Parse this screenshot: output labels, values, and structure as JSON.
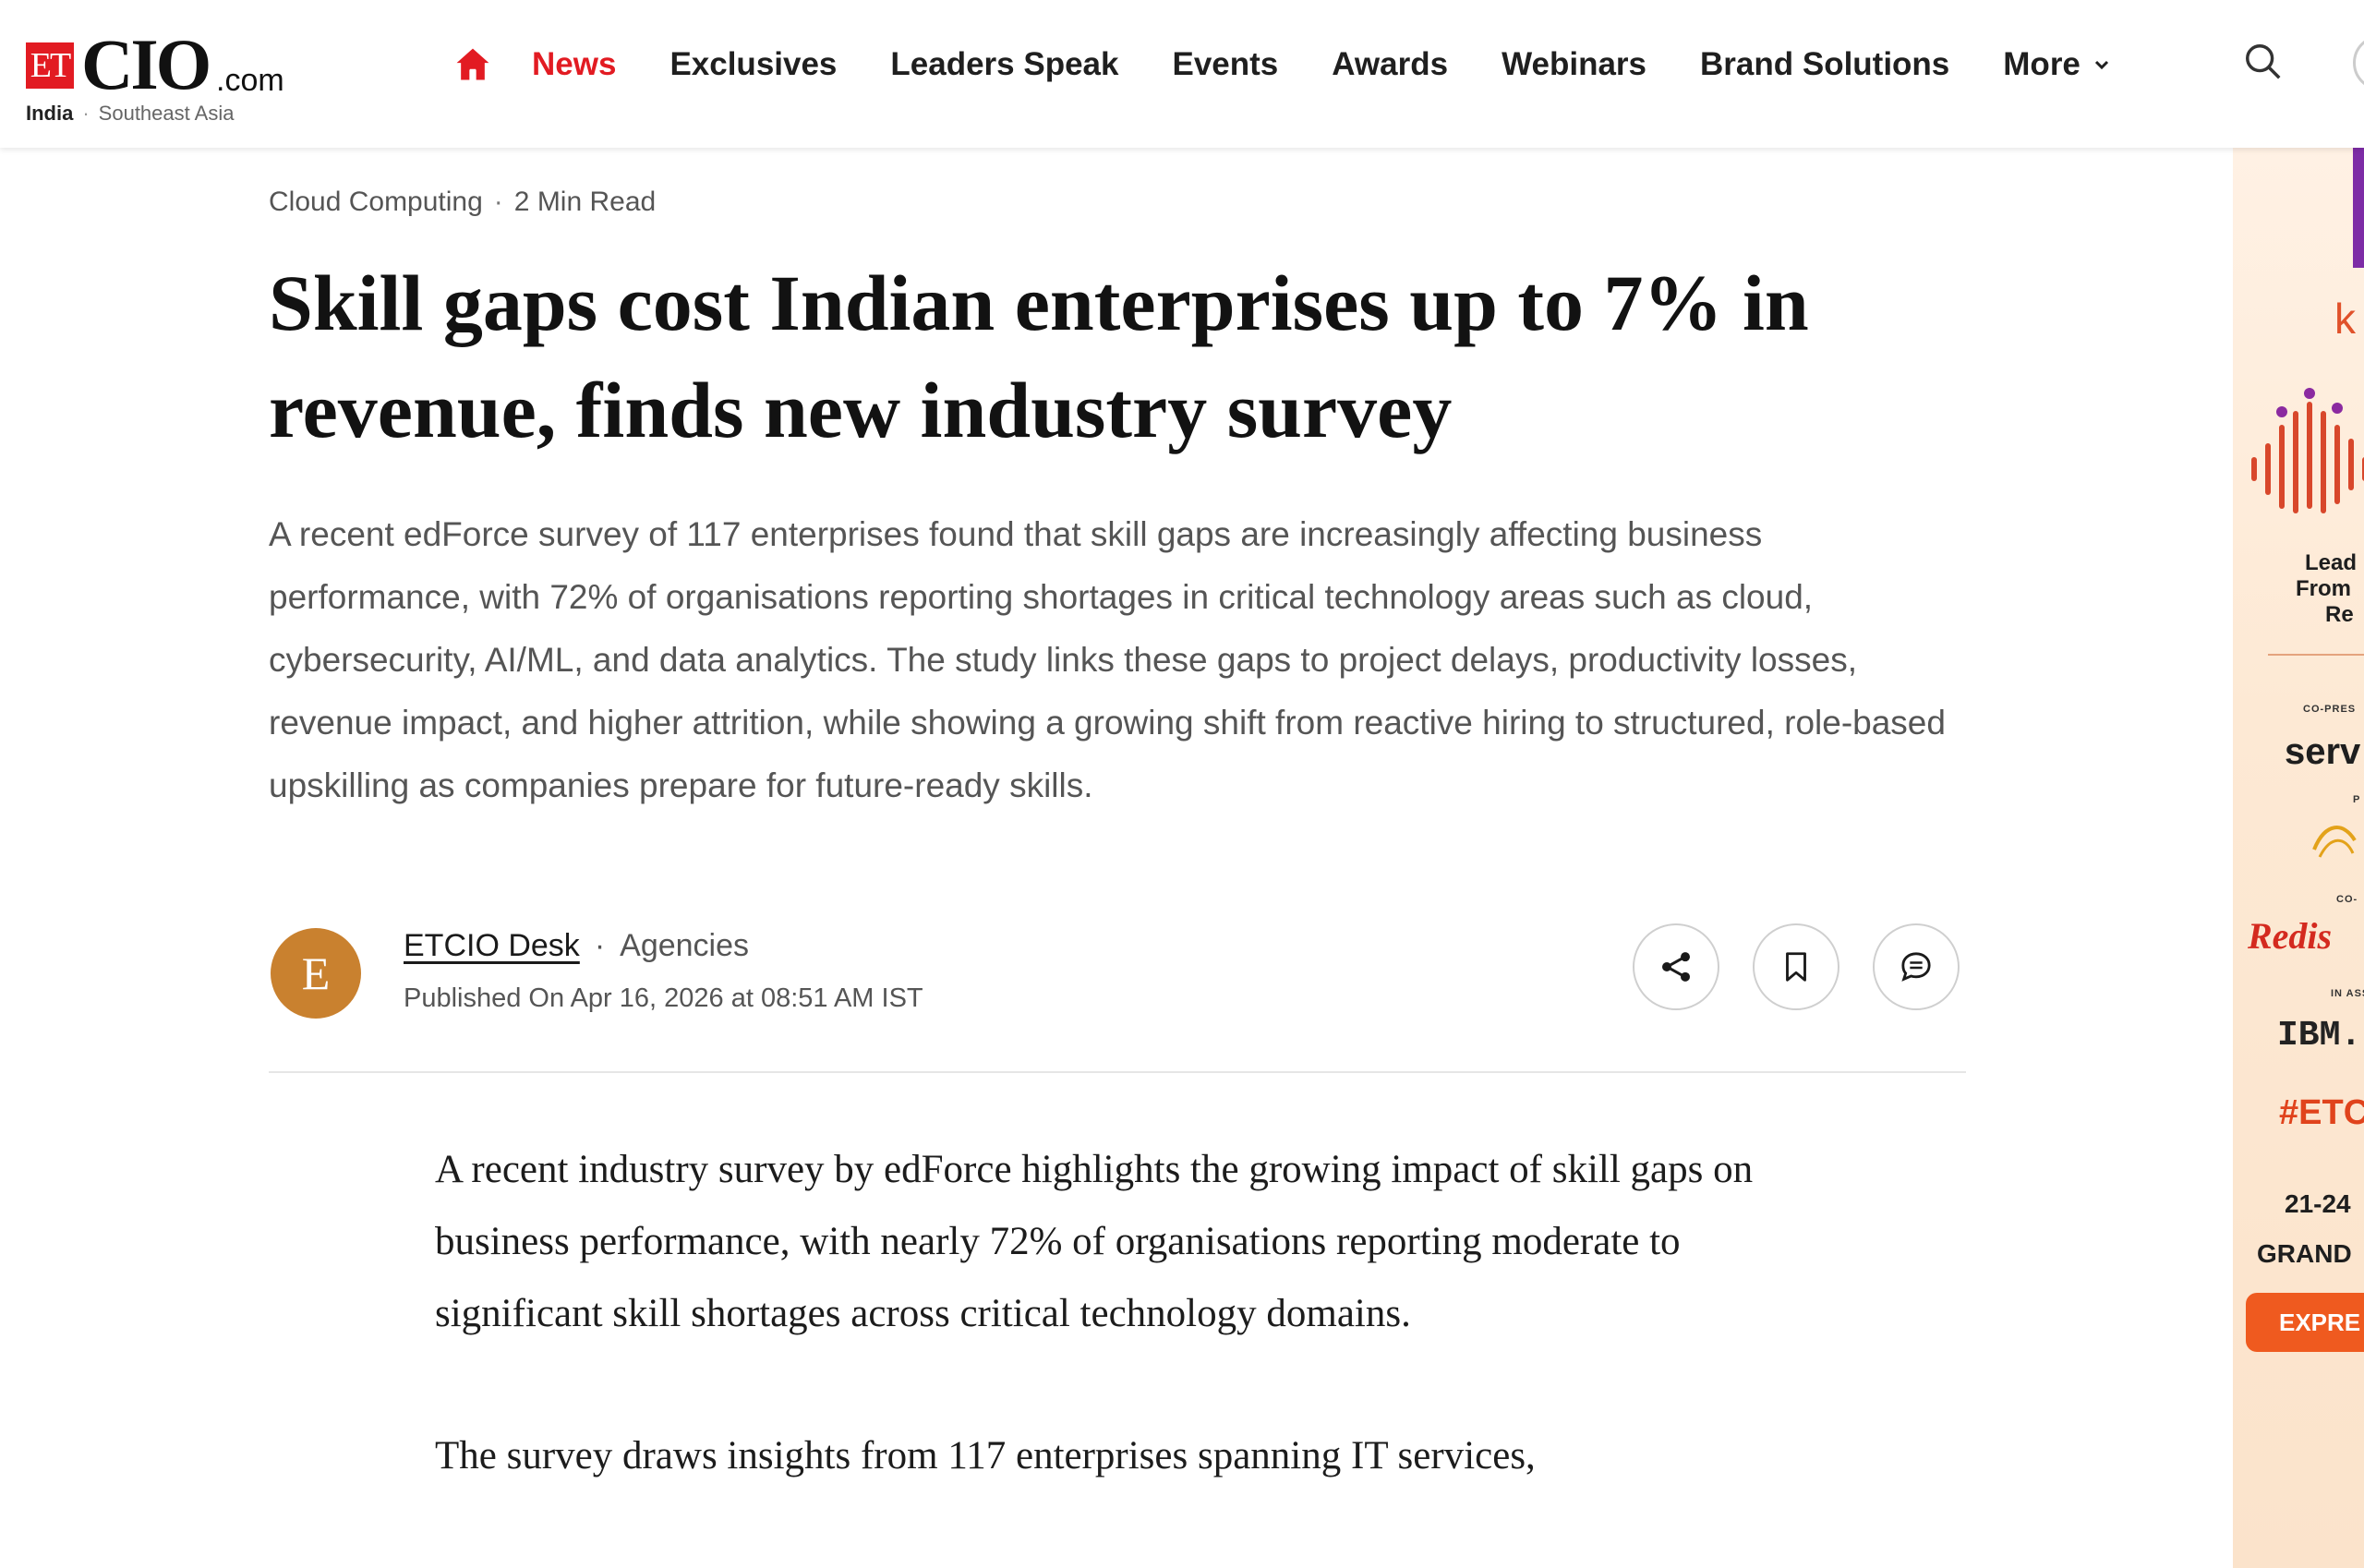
{
  "header": {
    "logo": {
      "et": "ET",
      "brand": "CIO",
      "suffix": ".com"
    },
    "editions": [
      "India",
      "Southeast Asia"
    ],
    "nav": {
      "home_icon": "home-icon",
      "items": [
        "News",
        "Exclusives",
        "Leaders Speak",
        "Events",
        "Awards",
        "Webinars",
        "Brand Solutions"
      ],
      "active": "News",
      "more_label": "More"
    },
    "search_icon": "search-icon",
    "accent_color": "#e21b22"
  },
  "article": {
    "category": "Cloud Computing",
    "read_time": "2 Min Read",
    "title": "Skill gaps cost Indian enterprises up to 7% in revenue, finds new industry survey",
    "summary": "A recent edForce survey of 117 enterprises found that skill gaps are increasingly affecting business performance, with 72% of organisations reporting shortages in critical technology areas such as cloud, cybersecurity, AI/ML, and data analytics. The study links these gaps to project delays, productivity losses, revenue impact, and higher attrition, while showing a growing shift from reactive hiring to structured, role-based upskilling as companies prepare for future-ready skills.",
    "author": {
      "initial": "E",
      "name": "ETCIO Desk",
      "source": "Agencies",
      "published": "Published On Apr 16, 2026 at 08:51 AM IST",
      "avatar_color": "#c9812f"
    },
    "actions": [
      "share-icon",
      "bookmark-icon",
      "comment-icon"
    ],
    "body": [
      "A recent industry survey by edForce highlights the growing impact of skill gaps on business performance, with nearly 72% of organisations reporting moderate to significant skill shortages across critical technology domains.",
      "The survey draws insights from 117 enterprises spanning IT services,"
    ]
  },
  "ad": {
    "k": "k",
    "lead_lines": [
      "Lead",
      "From",
      "Re"
    ],
    "co_presented": "CO-PRES",
    "serv": "serv",
    "p": "P",
    "co": "CO-",
    "redis": "Redis",
    "in_ass": "IN ASS",
    "ibm": "IBM.",
    "hashtag": "#ETC",
    "dates": "21-24",
    "venue": "GRAND",
    "button": "EXPRE"
  }
}
